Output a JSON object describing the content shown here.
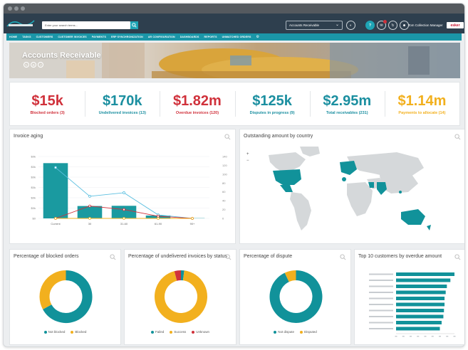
{
  "topbar": {
    "search_placeholder": "Enter your search terms...",
    "view_selector": "Accounts Receivable",
    "user_name": "Tom Collection Manager",
    "brand": "esker"
  },
  "nav": [
    "HOME",
    "TASKS",
    "CUSTOMERS",
    "CUSTOMER INVOICES",
    "PAYMENTS",
    "ERP SYNCHRONIZATION",
    "AR CONFIGURATION",
    "DASHBOARDS",
    "REPORTS",
    "UNMATCHED ORDERS"
  ],
  "banner": {
    "title": "Accounts Receivable"
  },
  "kpis": [
    {
      "value": "$15k",
      "label": "Blocked orders (3)",
      "color": "#d0313b"
    },
    {
      "value": "$170k",
      "label": "Undelivered invoices (13)",
      "color": "#1b8fa0"
    },
    {
      "value": "$1.82m",
      "label": "Overdue invoices (120)",
      "color": "#d0313b"
    },
    {
      "value": "$125k",
      "label": "Disputes in progress (9)",
      "color": "#1b8fa0"
    },
    {
      "value": "$2.95m",
      "label": "Total receivables (231)",
      "color": "#1b8fa0"
    },
    {
      "value": "$1.14m",
      "label": "Payments to allocate (14)",
      "color": "#f2b01e"
    }
  ],
  "cards": {
    "aging": "Invoice aging",
    "map": "Outstanding amount by country",
    "blocked": "Percentage of blocked orders",
    "undelivered": "Percentage of undelivered invoices by status",
    "dispute": "Percentage of dispute",
    "top10": "Top 10 customers by overdue amount"
  },
  "chart_data": [
    {
      "type": "bar",
      "title": "Invoice aging",
      "categories": [
        "Current",
        "30",
        "31-60",
        "61-90",
        "90+"
      ],
      "yticks_left": [
        "$0",
        "$0k",
        "$0k",
        "$0k",
        "$0k",
        "$0k",
        "$0k"
      ],
      "yticks_right": [
        "0",
        "20",
        "40",
        "60",
        "80",
        "100",
        "120",
        "140"
      ],
      "series": [
        {
          "kind": "bar",
          "values": [
            1250,
            280,
            285,
            65,
            5
          ]
        },
        {
          "kind": "line",
          "values": [
            115,
            50,
            58,
            8,
            0
          ]
        },
        {
          "kind": "line",
          "values": [
            0,
            28,
            20,
            5,
            0
          ]
        },
        {
          "kind": "line",
          "values": [
            0,
            0,
            0,
            0,
            0
          ]
        }
      ],
      "colors": [
        "#1a9aa0",
        "#5bbfe0",
        "#d0313b",
        "#f2b01e"
      ]
    },
    {
      "type": "pie",
      "title": "Percentage of blocked orders",
      "values": [
        67,
        33
      ],
      "labels": [
        "Not blocked",
        "Blocked"
      ],
      "colors": [
        "#11929a",
        "#f2b01e"
      ]
    },
    {
      "type": "pie",
      "title": "Percentage of undelivered invoices by status",
      "values": [
        2,
        94,
        4
      ],
      "labels": [
        "Failed",
        "Success",
        "Unknown"
      ],
      "colors": [
        "#11929a",
        "#f2b01e",
        "#d0313b"
      ]
    },
    {
      "type": "pie",
      "title": "Percentage of dispute",
      "values": [
        93,
        7
      ],
      "labels": [
        "Not dispute",
        "Disputed"
      ],
      "colors": [
        "#11929a",
        "#f2b01e"
      ]
    },
    {
      "type": "bar",
      "orientation": "horizontal",
      "title": "Top 10 customers by overdue amount",
      "categories": [
        "",
        "",
        "",
        "",
        "",
        "",
        "",
        "",
        "",
        ""
      ],
      "values": [
        100,
        93,
        87,
        85,
        83,
        83,
        82,
        81,
        78,
        75
      ],
      "colors": [
        "#11929a"
      ]
    }
  ]
}
